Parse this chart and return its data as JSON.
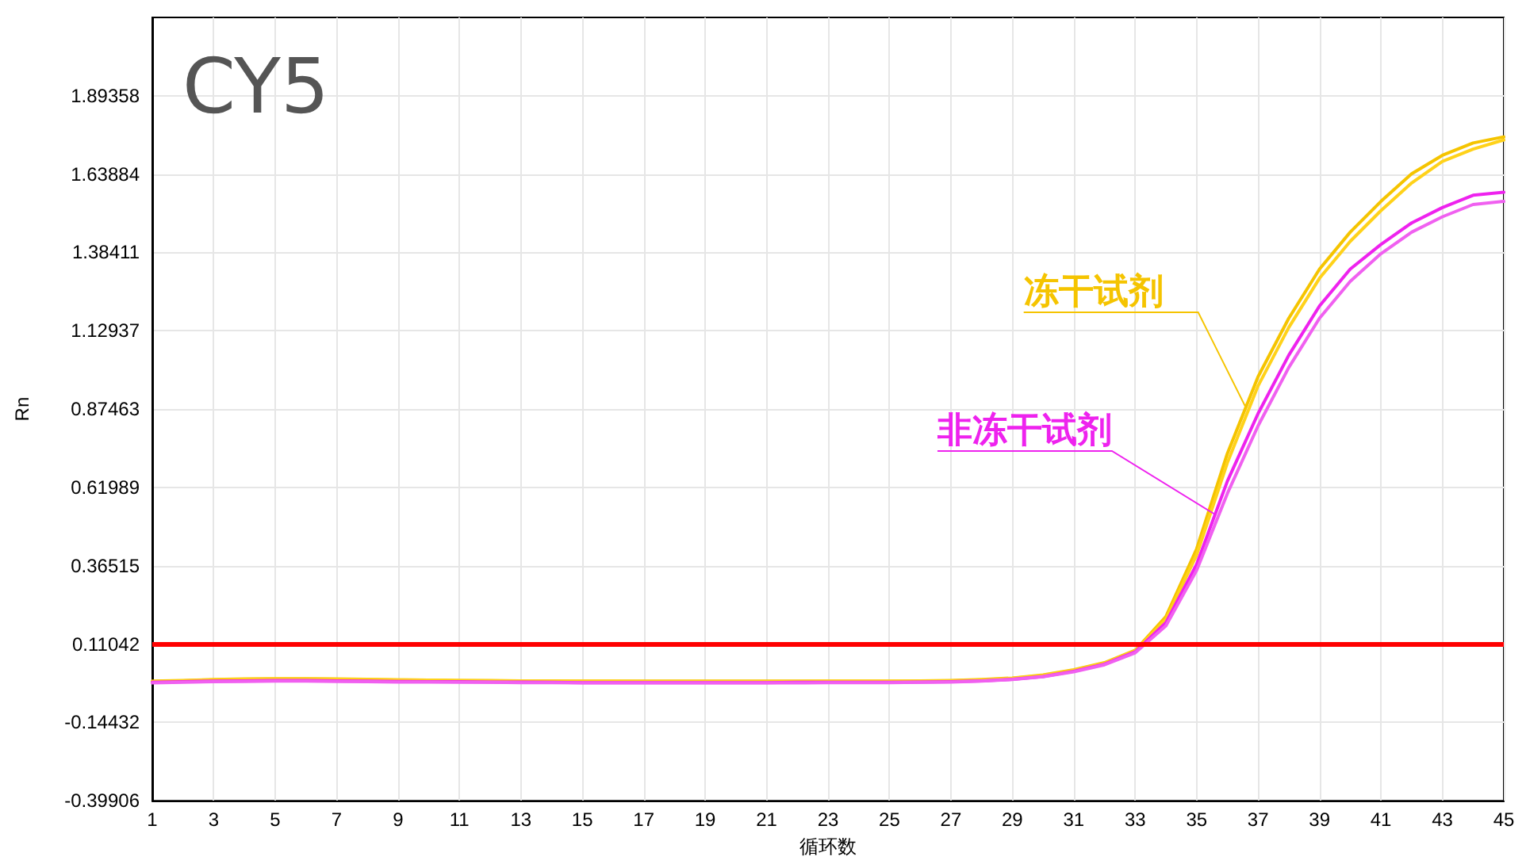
{
  "chart_data": {
    "type": "line",
    "title": "CY5",
    "xlabel": "循环数",
    "ylabel": "Rn",
    "x": [
      1,
      2,
      3,
      4,
      5,
      6,
      7,
      8,
      9,
      10,
      11,
      12,
      13,
      14,
      15,
      16,
      17,
      18,
      19,
      20,
      21,
      22,
      23,
      24,
      25,
      26,
      27,
      28,
      29,
      30,
      31,
      32,
      33,
      34,
      35,
      36,
      37,
      38,
      39,
      40,
      41,
      42,
      43,
      44,
      45
    ],
    "series": [
      {
        "name": "冻干试剂",
        "color": "#f5c400",
        "values": [
          -0.01,
          -0.008,
          -0.005,
          -0.003,
          -0.002,
          -0.002,
          -0.003,
          -0.004,
          -0.006,
          -0.007,
          -0.008,
          -0.008,
          -0.009,
          -0.009,
          -0.01,
          -0.01,
          -0.01,
          -0.01,
          -0.01,
          -0.01,
          -0.01,
          -0.01,
          -0.01,
          -0.01,
          -0.01,
          -0.009,
          -0.008,
          -0.005,
          0.0,
          0.01,
          0.027,
          0.05,
          0.09,
          0.2,
          0.42,
          0.73,
          0.98,
          1.17,
          1.33,
          1.45,
          1.55,
          1.64,
          1.7,
          1.74,
          1.76
        ]
      },
      {
        "color": "#ffd21a",
        "values": [
          -0.012,
          -0.009,
          -0.006,
          -0.004,
          -0.003,
          -0.003,
          -0.004,
          -0.005,
          -0.006,
          -0.007,
          -0.008,
          -0.009,
          -0.009,
          -0.01,
          -0.01,
          -0.01,
          -0.011,
          -0.011,
          -0.011,
          -0.011,
          -0.011,
          -0.011,
          -0.01,
          -0.01,
          -0.01,
          -0.01,
          -0.009,
          -0.006,
          -0.001,
          0.008,
          0.025,
          0.048,
          0.088,
          0.19,
          0.4,
          0.7,
          0.95,
          1.14,
          1.3,
          1.42,
          1.52,
          1.61,
          1.68,
          1.72,
          1.75
        ]
      },
      {
        "name": "非冻干试剂",
        "color": "#ee22ee",
        "values": [
          -0.014,
          -0.012,
          -0.01,
          -0.009,
          -0.008,
          -0.008,
          -0.009,
          -0.01,
          -0.011,
          -0.012,
          -0.012,
          -0.013,
          -0.013,
          -0.014,
          -0.015,
          -0.015,
          -0.015,
          -0.015,
          -0.015,
          -0.015,
          -0.015,
          -0.014,
          -0.014,
          -0.014,
          -0.014,
          -0.013,
          -0.012,
          -0.009,
          -0.004,
          0.005,
          0.022,
          0.045,
          0.085,
          0.18,
          0.37,
          0.64,
          0.86,
          1.05,
          1.21,
          1.33,
          1.41,
          1.48,
          1.53,
          1.57,
          1.58
        ]
      },
      {
        "color": "#f060f0",
        "values": [
          -0.016,
          -0.014,
          -0.012,
          -0.011,
          -0.01,
          -0.01,
          -0.011,
          -0.012,
          -0.013,
          -0.013,
          -0.014,
          -0.014,
          -0.015,
          -0.015,
          -0.016,
          -0.016,
          -0.016,
          -0.016,
          -0.016,
          -0.016,
          -0.016,
          -0.016,
          -0.015,
          -0.015,
          -0.015,
          -0.014,
          -0.013,
          -0.01,
          -0.005,
          0.004,
          0.02,
          0.043,
          0.082,
          0.17,
          0.35,
          0.6,
          0.82,
          1.01,
          1.17,
          1.29,
          1.38,
          1.45,
          1.5,
          1.54,
          1.55
        ]
      }
    ],
    "xlim": [
      1,
      45
    ],
    "xticks": [
      1,
      3,
      5,
      7,
      9,
      11,
      13,
      15,
      17,
      19,
      21,
      23,
      25,
      27,
      29,
      31,
      33,
      35,
      37,
      39,
      41,
      43,
      45
    ],
    "ylim": [
      -0.39906,
      2.14832
    ],
    "yticks": [
      -0.39906,
      -0.14432,
      0.11042,
      0.36515,
      0.61989,
      0.87463,
      1.12937,
      1.38411,
      1.63884,
      1.89358
    ],
    "ref_lines": [
      {
        "axis": "y",
        "value": 0.11042,
        "color": "#ff0000"
      }
    ],
    "grid": true,
    "legend": false,
    "marker": "none",
    "line_style": "solid"
  }
}
